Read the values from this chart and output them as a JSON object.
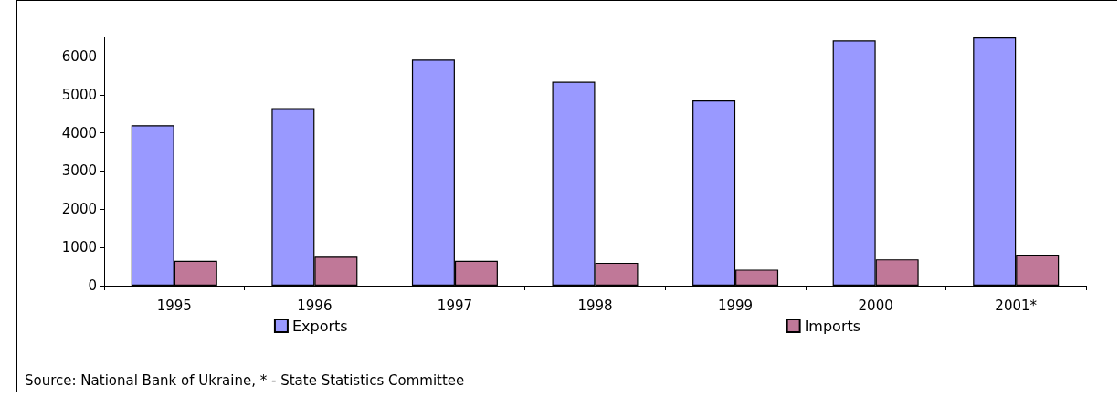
{
  "chart_data": {
    "type": "bar",
    "categories": [
      "1995",
      "1996",
      "1997",
      "1998",
      "1999",
      "2000",
      "2001*"
    ],
    "series": [
      {
        "name": "Exports",
        "color": "#9999ff",
        "values": [
          4200,
          4650,
          5920,
          5340,
          4850,
          6420,
          6500
        ]
      },
      {
        "name": "Imports",
        "color": "#c07898",
        "values": [
          650,
          760,
          650,
          600,
          420,
          690,
          810
        ]
      }
    ],
    "ylim": [
      0,
      6500
    ],
    "yticks": [
      0,
      1000,
      2000,
      3000,
      4000,
      5000,
      6000
    ],
    "grid": false,
    "legend": "bottom",
    "annotations": [
      "Source: National Bank of Ukraine, * - State Statistics Committee"
    ]
  }
}
